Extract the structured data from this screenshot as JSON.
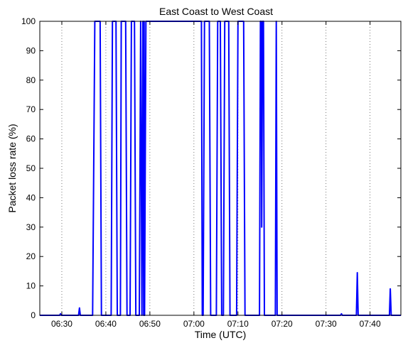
{
  "chart_data": {
    "type": "line",
    "title": "East Coast to West Coast",
    "xlabel": "Time (UTC)",
    "ylabel": "Packet loss rate (%)",
    "x_unit": "HH:MM",
    "xlim": [
      "06:25",
      "07:47"
    ],
    "ylim": [
      0,
      100
    ],
    "x_ticks": [
      "06:30",
      "06:40",
      "06:50",
      "07:00",
      "07:10",
      "07:20",
      "07:30",
      "07:40"
    ],
    "y_ticks": [
      0,
      10,
      20,
      30,
      40,
      50,
      60,
      70,
      80,
      90,
      100
    ],
    "grid": {
      "x": true,
      "y": false,
      "style": "dotted"
    },
    "color": "#0000ff",
    "series": [
      {
        "x": [
          "06:25",
          "06:29:30",
          "06:29:42",
          "06:29:54",
          "06:33:48",
          "06:34",
          "06:34:12",
          "06:37",
          "06:37:30",
          "06:38:42",
          "06:39",
          "06:41:12",
          "06:41:30",
          "06:42:18",
          "06:42:36",
          "06:43:18",
          "06:43:30",
          "06:44:30",
          "06:44:48",
          "06:45:30",
          "06:45:48",
          "06:46:30",
          "06:46:48",
          "06:47:36",
          "06:47:54",
          "06:48:12",
          "06:48:24",
          "06:48:36",
          "06:48:42",
          "06:48:48",
          "06:49:06",
          "07:01:42",
          "07:01:54",
          "07:02:06",
          "07:02:24",
          "07:03:30",
          "07:03:48",
          "07:05:06",
          "07:05:24",
          "07:06:00",
          "07:06:18",
          "07:06:42",
          "07:07:00",
          "07:07:54",
          "07:08:12",
          "07:09:42",
          "07:10:00",
          "07:11:18",
          "07:11:36",
          "07:14:54",
          "07:15:06",
          "07:15:18",
          "07:15:24",
          "07:15:36",
          "07:15:48",
          "07:16:00",
          "07:18:30",
          "07:18:42",
          "07:18:54",
          "07:33:18",
          "07:33:30",
          "07:33:42",
          "07:36:54",
          "07:37:06",
          "07:37:18",
          "07:44:24",
          "07:44:36",
          "07:44:48",
          "07:47"
        ],
        "y": [
          0,
          0,
          0.5,
          0,
          0,
          2.5,
          0,
          0,
          100,
          100,
          0,
          0,
          100,
          100,
          0,
          0,
          100,
          100,
          0,
          0,
          100,
          100,
          0,
          0,
          100,
          0,
          100,
          0,
          100,
          0,
          100,
          100,
          0,
          0,
          100,
          100,
          0,
          0,
          100,
          100,
          0,
          0,
          100,
          100,
          0,
          0,
          100,
          100,
          0,
          0,
          100,
          100,
          30,
          100,
          100,
          0,
          0,
          100,
          0,
          0,
          0.5,
          0,
          0,
          14.5,
          0,
          0,
          9,
          0,
          0
        ]
      }
    ]
  }
}
